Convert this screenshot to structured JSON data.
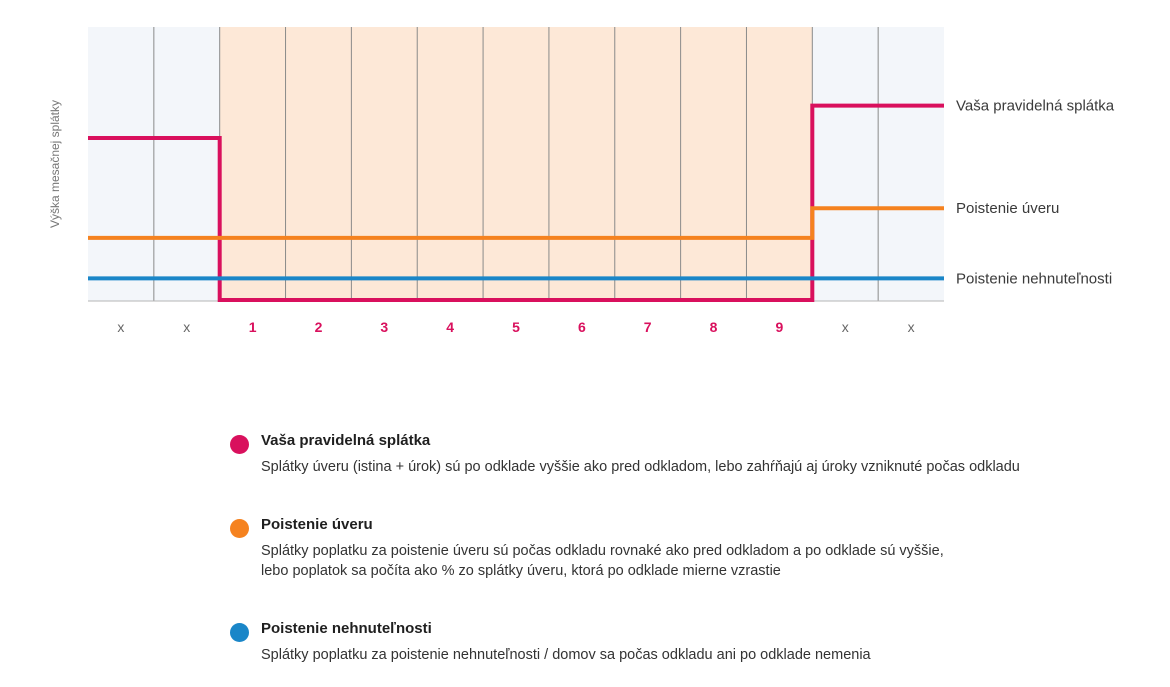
{
  "colors": {
    "regular": "#d9105d",
    "loan_ins": "#f5821f",
    "property_ins": "#1a86c8",
    "deferral_bg": "#fde8d7",
    "outer_bg": "#f3f6fa",
    "grid": "#8a8a8a",
    "tick_x": "#666666",
    "tick_num": "#d9105d"
  },
  "chart_data": {
    "type": "line",
    "ylabel": "Výška mesačnej splátky",
    "categories": [
      "x",
      "x",
      "1",
      "2",
      "3",
      "4",
      "5",
      "6",
      "7",
      "8",
      "9",
      "x",
      "x"
    ],
    "deferral_period": {
      "from_category_index": 2,
      "to_category_index": 10
    },
    "ylim": [
      0,
      100
    ],
    "series": [
      {
        "key": "regular",
        "name": "Vaša pravidelná splátka",
        "values": [
          60,
          60,
          0,
          0,
          0,
          0,
          0,
          0,
          0,
          0,
          0,
          72,
          72
        ]
      },
      {
        "key": "loan_ins",
        "name": "Poistenie úveru",
        "values": [
          23,
          23,
          23,
          23,
          23,
          23,
          23,
          23,
          23,
          23,
          23,
          34,
          34
        ]
      },
      {
        "key": "property_ins",
        "name": "Poistenie nehnuteľnosti",
        "values": [
          8,
          8,
          8,
          8,
          8,
          8,
          8,
          8,
          8,
          8,
          8,
          8,
          8
        ]
      }
    ],
    "grid": true,
    "legend_position": "bottom"
  },
  "legend": [
    {
      "key": "regular",
      "title": "Vaša pravidelná splátka",
      "desc": [
        "Splátky úveru (istina + úrok) sú po odklade vyššie ako pred odkladom, lebo zahŕňajú aj úroky vzniknuté počas odkladu"
      ]
    },
    {
      "key": "loan_ins",
      "title": "Poistenie úveru",
      "desc": [
        "Splátky poplatku za poistenie úveru sú počas odkladu rovnaké ako pred odkladom a po odklade sú vyššie,",
        "lebo poplatok sa počíta ako % zo splátky úveru, ktorá po odklade mierne vzrastie"
      ]
    },
    {
      "key": "property_ins",
      "title": "Poistenie nehnuteľnosti",
      "desc": [
        "Splátky poplatku za poistenie nehnuteľnosti / domov sa počas odkladu ani po odklade nemenia"
      ]
    }
  ]
}
